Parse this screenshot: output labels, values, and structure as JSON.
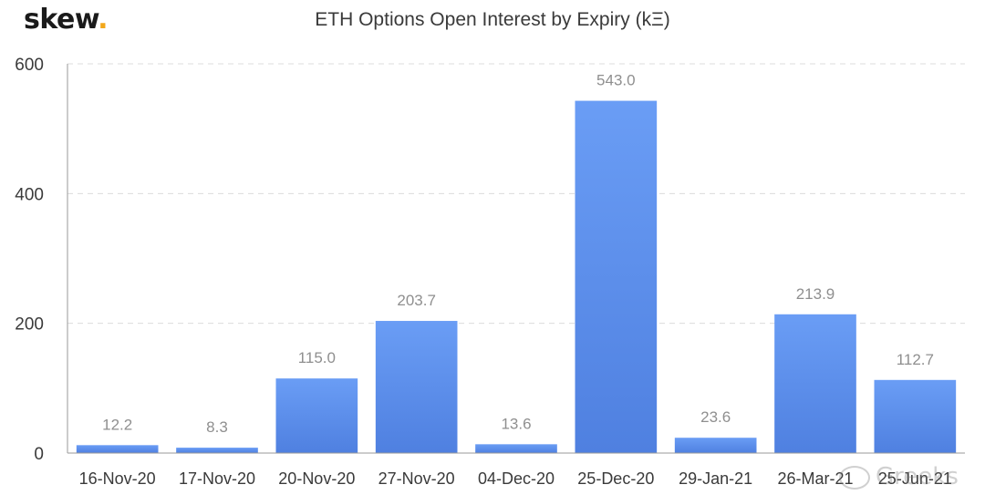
{
  "brand": {
    "name": "skew",
    "dot": ".",
    "dot_color": "#f2a71b"
  },
  "watermark": {
    "text": "Greeks"
  },
  "chart_data": {
    "type": "bar",
    "title": "ETH Options Open Interest by Expiry (kΞ)",
    "xlabel": "",
    "ylabel": "",
    "categories": [
      "16-Nov-20",
      "17-Nov-20",
      "20-Nov-20",
      "27-Nov-20",
      "04-Dec-20",
      "25-Dec-20",
      "29-Jan-21",
      "26-Mar-21",
      "25-Jun-21"
    ],
    "values": [
      12.2,
      8.3,
      115.0,
      203.7,
      13.6,
      543.0,
      23.6,
      213.9,
      112.7
    ],
    "value_labels": [
      "12.2",
      "8.3",
      "115.0",
      "203.7",
      "13.6",
      "543.0",
      "23.6",
      "213.9",
      "112.7"
    ],
    "ylim": [
      0,
      600
    ],
    "yticks": [
      0,
      200,
      400,
      600
    ],
    "grid": true,
    "bar_color_top": "#6a9df5",
    "bar_color_bottom": "#4f80e0"
  }
}
